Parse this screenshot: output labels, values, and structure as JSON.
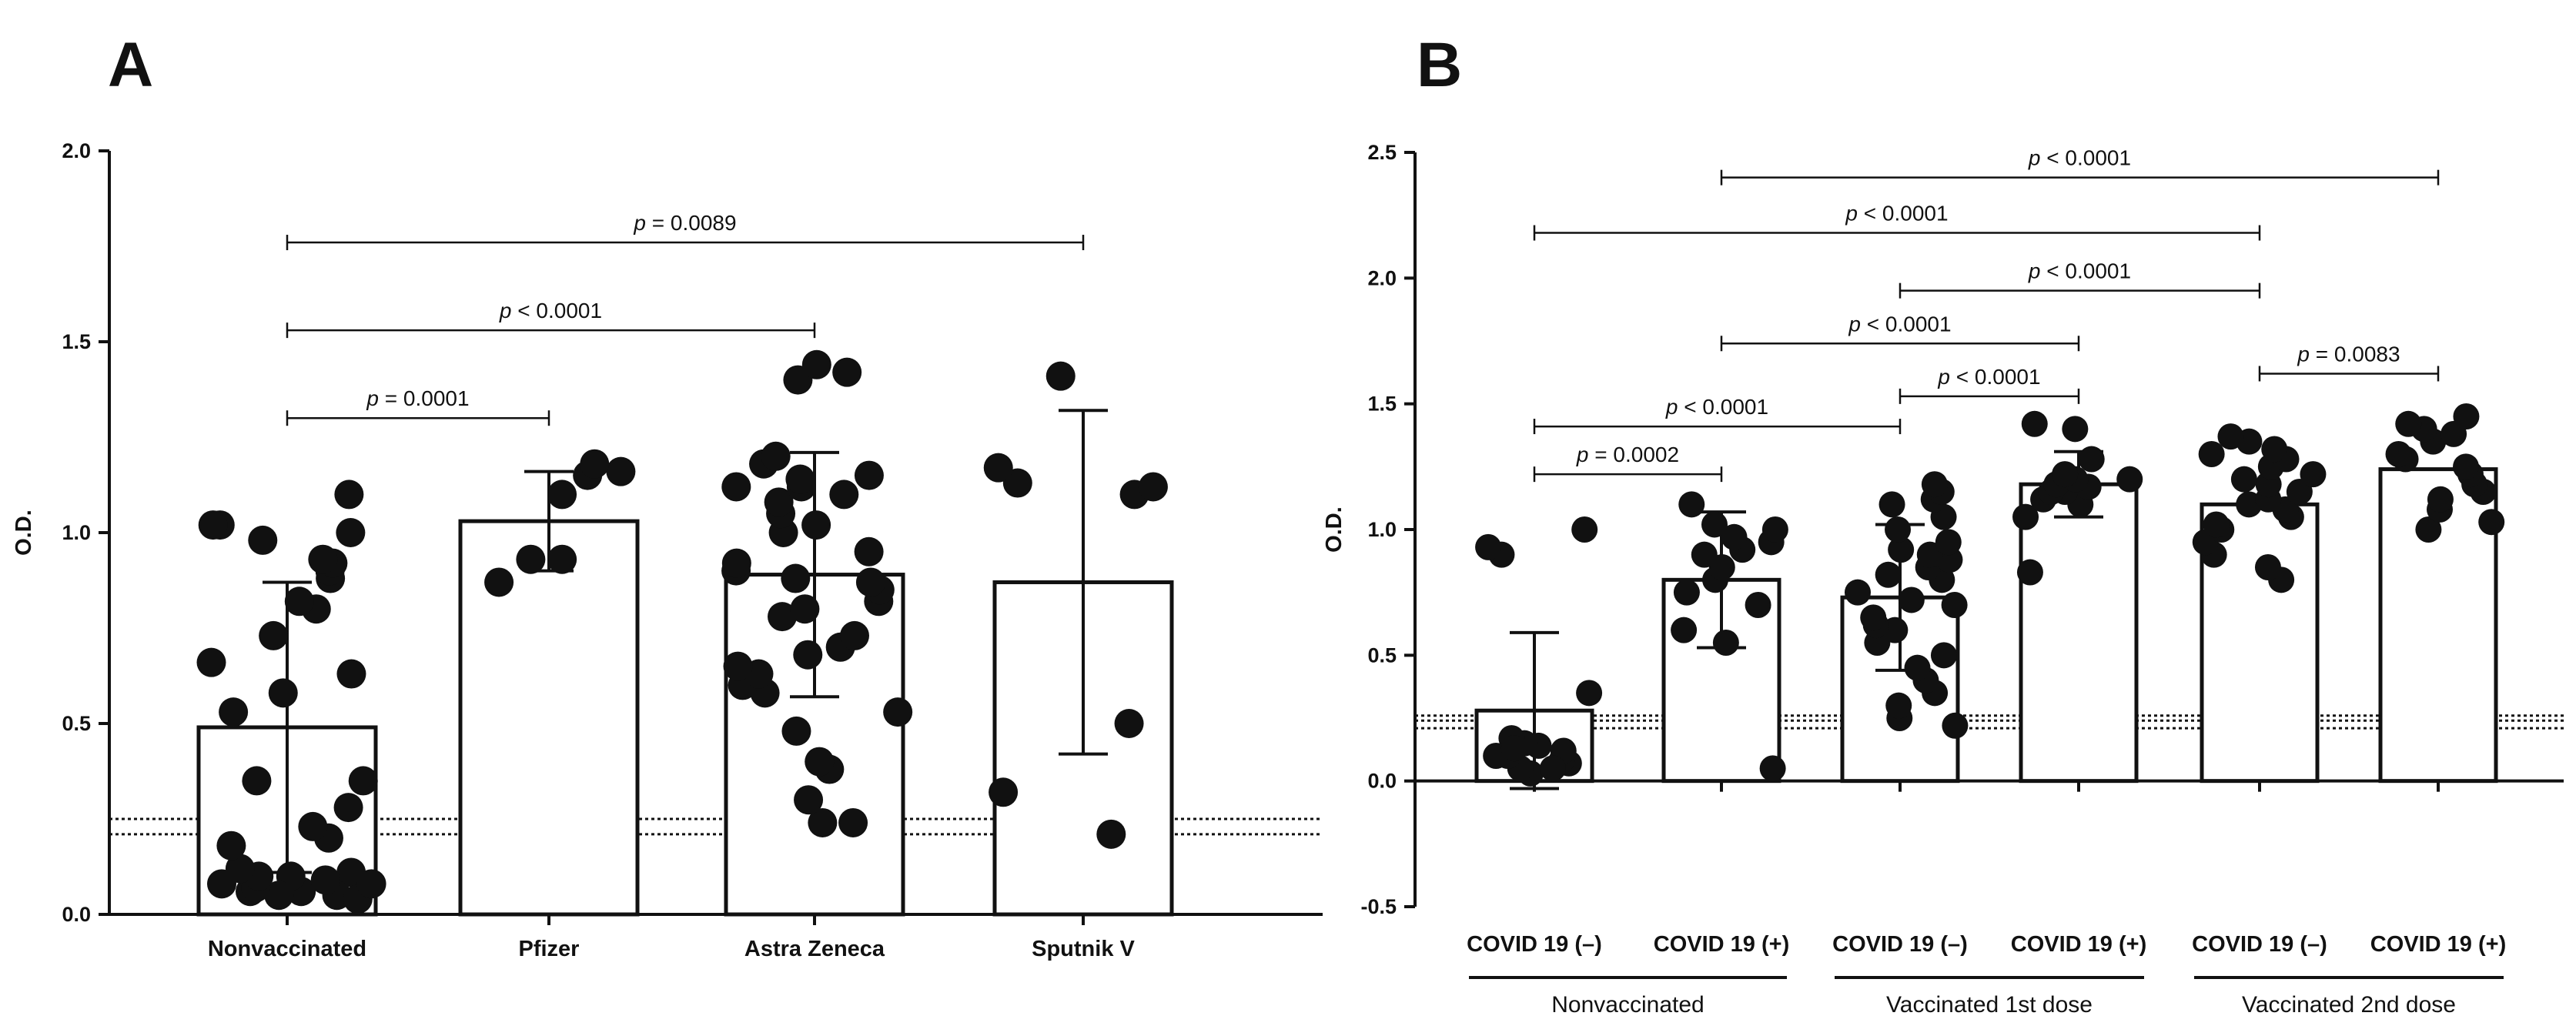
{
  "panels": [
    {
      "letter": "A",
      "type": "bar",
      "ylabel": "O.D.",
      "ylim": [
        0,
        2.0
      ],
      "yticks": [
        "0.0",
        "0.5",
        "1.0",
        "1.5",
        "2.0"
      ],
      "cutoff_lines": [
        0.21,
        0.25
      ],
      "categories": [
        "Nonvaccinated",
        "Pfizer",
        "Astra Zeneca",
        "Sputnik V"
      ],
      "bars": [
        {
          "mean": 0.49,
          "sd": 0.38
        },
        {
          "mean": 1.03,
          "sd": 0.13
        },
        {
          "mean": 0.89,
          "sd": 0.32
        },
        {
          "mean": 0.87,
          "sd": 0.45
        }
      ],
      "points": [
        [
          0.06,
          0.08,
          0.11,
          0.1,
          0.05,
          0.06,
          0.09,
          0.04,
          0.05,
          0.07,
          0.1,
          0.08,
          0.12,
          0.18,
          0.2,
          0.23,
          0.28,
          0.35,
          0.35,
          0.53,
          0.58,
          0.63,
          0.66,
          0.73,
          0.8,
          0.82,
          0.88,
          0.9,
          0.92,
          0.93,
          0.98,
          1.0,
          1.02,
          1.02,
          1.1
        ],
        [
          0.87,
          0.93,
          0.93,
          1.1,
          1.15,
          1.16,
          1.18
        ],
        [
          0.24,
          0.24,
          0.3,
          0.38,
          0.4,
          0.48,
          0.53,
          0.58,
          0.6,
          0.63,
          0.65,
          0.68,
          0.7,
          0.73,
          0.78,
          0.8,
          0.82,
          0.85,
          0.87,
          0.88,
          0.9,
          0.92,
          0.95,
          1.0,
          1.02,
          1.05,
          1.08,
          1.1,
          1.12,
          1.12,
          1.14,
          1.15,
          1.18,
          1.2,
          1.4,
          1.42,
          1.44
        ],
        [
          0.21,
          0.32,
          0.5,
          1.1,
          1.12,
          1.13,
          1.17,
          1.41
        ]
      ],
      "comparisons": [
        {
          "from": 0,
          "to": 1,
          "y": 1.3,
          "p_symbol": "p",
          "p_text": " = 0.0001"
        },
        {
          "from": 0,
          "to": 2,
          "y": 1.53,
          "p_symbol": "p",
          "p_text": " < 0.0001"
        },
        {
          "from": 0,
          "to": 3,
          "y": 1.76,
          "p_symbol": "p",
          "p_text": " = 0.0089"
        }
      ]
    },
    {
      "letter": "B",
      "type": "bar",
      "ylabel": "O.D.",
      "ylim": [
        -0.5,
        2.5
      ],
      "yticks": [
        "-0.5",
        "0.0",
        "0.5",
        "1.0",
        "1.5",
        "2.0",
        "2.5"
      ],
      "cutoff_lines": [
        0.21,
        0.24,
        0.26
      ],
      "categories": [
        "COVID 19 (–)",
        "COVID 19 (+)",
        "COVID 19 (–)",
        "COVID 19 (+)",
        "COVID 19 (–)",
        "COVID 19 (+)"
      ],
      "groups": [
        {
          "label": "Nonvaccinated",
          "from": 0,
          "to": 1
        },
        {
          "label": "Vaccinated 1st dose",
          "from": 2,
          "to": 3
        },
        {
          "label": "Vaccinated 2nd dose",
          "from": 4,
          "to": 5
        }
      ],
      "bars": [
        {
          "mean": 0.28,
          "sd": 0.31
        },
        {
          "mean": 0.8,
          "sd": 0.27
        },
        {
          "mean": 0.73,
          "sd": 0.29
        },
        {
          "mean": 1.18,
          "sd": 0.13
        },
        {
          "mean": 1.1,
          "sd": 0.0
        },
        {
          "mean": 1.24,
          "sd": 0.0
        }
      ],
      "points": [
        [
          0.03,
          0.05,
          0.07,
          0.08,
          0.1,
          0.12,
          0.14,
          0.15,
          0.17,
          0.05,
          0.1,
          0.13,
          0.35,
          0.9,
          0.93,
          1.0
        ],
        [
          0.05,
          0.55,
          0.6,
          0.7,
          0.75,
          0.8,
          0.85,
          0.9,
          0.92,
          0.95,
          0.97,
          1.0,
          1.02,
          1.1
        ],
        [
          0.22,
          0.25,
          0.3,
          0.35,
          0.4,
          0.45,
          0.5,
          0.55,
          0.6,
          0.62,
          0.65,
          0.7,
          0.72,
          0.75,
          0.8,
          0.82,
          0.85,
          0.88,
          0.9,
          0.92,
          0.95,
          1.0,
          1.05,
          1.1,
          1.12,
          1.15,
          1.18
        ],
        [
          0.83,
          1.05,
          1.1,
          1.12,
          1.15,
          1.15,
          1.17,
          1.18,
          1.2,
          1.2,
          1.22,
          1.28,
          1.4,
          1.42
        ],
        [
          0.8,
          0.85,
          0.9,
          0.95,
          1.0,
          1.02,
          1.05,
          1.08,
          1.1,
          1.12,
          1.15,
          1.18,
          1.2,
          1.22,
          1.25,
          1.28,
          1.3,
          1.32,
          1.35,
          1.37
        ],
        [
          1.0,
          1.03,
          1.08,
          1.12,
          1.15,
          1.18,
          1.22,
          1.25,
          1.28,
          1.3,
          1.35,
          1.38,
          1.4,
          1.42,
          1.45
        ]
      ],
      "comparisons": [
        {
          "from": 0,
          "to": 1,
          "y": 1.22,
          "p_symbol": "p",
          "p_text": " = 0.0002"
        },
        {
          "from": 0,
          "to": 2,
          "y": 1.41,
          "p_symbol": "p",
          "p_text": " < 0.0001"
        },
        {
          "from": 2,
          "to": 3,
          "y": 1.53,
          "p_symbol": "p",
          "p_text": " < 0.0001"
        },
        {
          "from": 1,
          "to": 3,
          "y": 1.74,
          "p_symbol": "p",
          "p_text": " < 0.0001"
        },
        {
          "from": 4,
          "to": 5,
          "y": 1.62,
          "p_symbol": "p",
          "p_text": " = 0.0083"
        },
        {
          "from": 2,
          "to": 4,
          "y": 1.95,
          "p_symbol": "p",
          "p_text": " < 0.0001"
        },
        {
          "from": 0,
          "to": 4,
          "y": 2.18,
          "p_symbol": "p",
          "p_text": " < 0.0001"
        },
        {
          "from": 1,
          "to": 5,
          "y": 2.4,
          "p_symbol": "p",
          "p_text": " < 0.0001"
        }
      ]
    }
  ],
  "chart_data": [
    {
      "type": "bar",
      "title": "A",
      "xlabel": "",
      "ylabel": "O.D.",
      "ylim": [
        0,
        2.0
      ],
      "categories": [
        "Nonvaccinated",
        "Pfizer",
        "Astra Zeneca",
        "Sputnik V"
      ],
      "values": [
        0.49,
        1.03,
        0.89,
        0.87
      ]
    },
    {
      "type": "bar",
      "title": "B",
      "xlabel": "",
      "ylabel": "O.D.",
      "ylim": [
        -0.5,
        2.5
      ],
      "categories": [
        "Nonvaccinated COVID 19 (–)",
        "Nonvaccinated COVID 19 (+)",
        "Vaccinated 1st dose COVID 19 (–)",
        "Vaccinated 1st dose COVID 19 (+)",
        "Vaccinated 2nd dose COVID 19 (–)",
        "Vaccinated 2nd dose COVID 19 (+)"
      ],
      "values": [
        0.28,
        0.8,
        0.73,
        1.18,
        1.1,
        1.24
      ]
    }
  ]
}
